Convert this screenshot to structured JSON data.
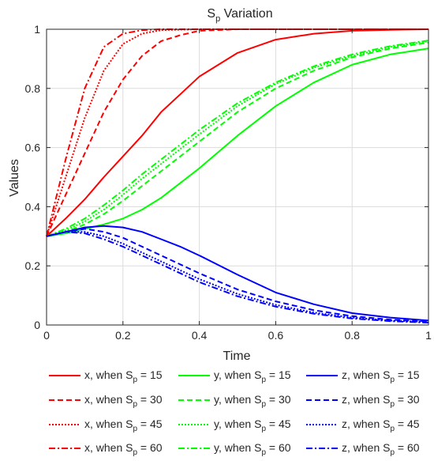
{
  "chart_data": {
    "type": "line",
    "title_main": "S",
    "title_sub": "p",
    "title_rest": " Variation",
    "xlabel": "Time",
    "ylabel": "Values",
    "xlim": [
      0,
      1
    ],
    "ylim": [
      0,
      1
    ],
    "xticks": [
      0,
      0.2,
      0.4,
      0.6,
      0.8,
      1
    ],
    "xtick_labels": [
      "0",
      "0.2",
      "0.4",
      "0.6",
      "0.8",
      "1"
    ],
    "yticks": [
      0,
      0.2,
      0.4,
      0.6,
      0.8,
      1
    ],
    "ytick_labels": [
      "0",
      "0.2",
      "0.4",
      "0.6",
      "0.8",
      "1"
    ],
    "grid": true,
    "legend_placement": "below plot, 3 columns",
    "colors": {
      "x": "#ff0000",
      "y": "#00ff00",
      "z": "#0000ff"
    },
    "series": [
      {
        "name": "x, when S_p = 15",
        "variable": "x",
        "sp": "15",
        "style": "solid",
        "color": "#ff0000",
        "points": [
          [
            0,
            0.3
          ],
          [
            0.05,
            0.36
          ],
          [
            0.1,
            0.425
          ],
          [
            0.15,
            0.5
          ],
          [
            0.2,
            0.57
          ],
          [
            0.25,
            0.64
          ],
          [
            0.3,
            0.72
          ],
          [
            0.35,
            0.78
          ],
          [
            0.4,
            0.84
          ],
          [
            0.5,
            0.92
          ],
          [
            0.6,
            0.965
          ],
          [
            0.7,
            0.985
          ],
          [
            0.8,
            0.995
          ],
          [
            0.9,
            0.998
          ],
          [
            1,
            1
          ]
        ]
      },
      {
        "name": "x, when S_p = 30",
        "variable": "x",
        "sp": "30",
        "style": "dashed",
        "color": "#ff0000",
        "points": [
          [
            0,
            0.3
          ],
          [
            0.05,
            0.44
          ],
          [
            0.1,
            0.58
          ],
          [
            0.15,
            0.72
          ],
          [
            0.2,
            0.83
          ],
          [
            0.25,
            0.91
          ],
          [
            0.3,
            0.96
          ],
          [
            0.35,
            0.98
          ],
          [
            0.4,
            0.995
          ],
          [
            0.5,
            1
          ],
          [
            0.6,
            1
          ],
          [
            0.8,
            1
          ],
          [
            1,
            1
          ]
        ]
      },
      {
        "name": "x, when S_p = 45",
        "variable": "x",
        "sp": "45",
        "style": "dotted",
        "color": "#ff0000",
        "points": [
          [
            0,
            0.3
          ],
          [
            0.05,
            0.5
          ],
          [
            0.1,
            0.7
          ],
          [
            0.15,
            0.86
          ],
          [
            0.2,
            0.95
          ],
          [
            0.25,
            0.985
          ],
          [
            0.3,
            0.997
          ],
          [
            0.4,
            1
          ],
          [
            0.6,
            1
          ],
          [
            0.8,
            1
          ],
          [
            1,
            1
          ]
        ]
      },
      {
        "name": "x, when S_p = 60",
        "variable": "x",
        "sp": "60",
        "style": "dashdot",
        "color": "#ff0000",
        "points": [
          [
            0,
            0.3
          ],
          [
            0.05,
            0.56
          ],
          [
            0.1,
            0.8
          ],
          [
            0.15,
            0.94
          ],
          [
            0.2,
            0.985
          ],
          [
            0.25,
            0.997
          ],
          [
            0.3,
            1
          ],
          [
            0.5,
            1
          ],
          [
            0.7,
            1
          ],
          [
            1,
            1
          ]
        ]
      },
      {
        "name": "y, when S_p = 15",
        "variable": "y",
        "sp": "15",
        "style": "solid",
        "color": "#00ff00",
        "points": [
          [
            0,
            0.3
          ],
          [
            0.05,
            0.31
          ],
          [
            0.1,
            0.325
          ],
          [
            0.15,
            0.34
          ],
          [
            0.2,
            0.36
          ],
          [
            0.25,
            0.39
          ],
          [
            0.3,
            0.43
          ],
          [
            0.4,
            0.53
          ],
          [
            0.5,
            0.64
          ],
          [
            0.6,
            0.74
          ],
          [
            0.7,
            0.82
          ],
          [
            0.8,
            0.88
          ],
          [
            0.9,
            0.915
          ],
          [
            1,
            0.935
          ]
        ]
      },
      {
        "name": "y, when S_p = 30",
        "variable": "y",
        "sp": "30",
        "style": "dashed",
        "color": "#00ff00",
        "points": [
          [
            0,
            0.3
          ],
          [
            0.05,
            0.315
          ],
          [
            0.1,
            0.34
          ],
          [
            0.15,
            0.375
          ],
          [
            0.2,
            0.42
          ],
          [
            0.25,
            0.47
          ],
          [
            0.3,
            0.52
          ],
          [
            0.4,
            0.62
          ],
          [
            0.5,
            0.72
          ],
          [
            0.6,
            0.8
          ],
          [
            0.7,
            0.86
          ],
          [
            0.8,
            0.905
          ],
          [
            0.9,
            0.935
          ],
          [
            1,
            0.955
          ]
        ]
      },
      {
        "name": "y, when S_p = 45",
        "variable": "y",
        "sp": "45",
        "style": "dotted",
        "color": "#00ff00",
        "points": [
          [
            0,
            0.3
          ],
          [
            0.05,
            0.32
          ],
          [
            0.1,
            0.35
          ],
          [
            0.15,
            0.39
          ],
          [
            0.2,
            0.44
          ],
          [
            0.25,
            0.495
          ],
          [
            0.3,
            0.545
          ],
          [
            0.4,
            0.645
          ],
          [
            0.5,
            0.74
          ],
          [
            0.6,
            0.815
          ],
          [
            0.7,
            0.87
          ],
          [
            0.8,
            0.91
          ],
          [
            0.9,
            0.94
          ],
          [
            1,
            0.96
          ]
        ]
      },
      {
        "name": "y, when S_p = 60",
        "variable": "y",
        "sp": "60",
        "style": "dashdot",
        "color": "#00ff00",
        "points": [
          [
            0,
            0.3
          ],
          [
            0.05,
            0.325
          ],
          [
            0.1,
            0.36
          ],
          [
            0.15,
            0.405
          ],
          [
            0.2,
            0.455
          ],
          [
            0.25,
            0.51
          ],
          [
            0.3,
            0.56
          ],
          [
            0.4,
            0.66
          ],
          [
            0.5,
            0.75
          ],
          [
            0.6,
            0.82
          ],
          [
            0.7,
            0.875
          ],
          [
            0.8,
            0.915
          ],
          [
            0.9,
            0.943
          ],
          [
            1,
            0.962
          ]
        ]
      },
      {
        "name": "z, when S_p = 15",
        "variable": "z",
        "sp": "15",
        "style": "solid",
        "color": "#0000ff",
        "points": [
          [
            0,
            0.3
          ],
          [
            0.05,
            0.315
          ],
          [
            0.1,
            0.33
          ],
          [
            0.15,
            0.335
          ],
          [
            0.2,
            0.33
          ],
          [
            0.25,
            0.315
          ],
          [
            0.3,
            0.29
          ],
          [
            0.35,
            0.265
          ],
          [
            0.4,
            0.235
          ],
          [
            0.5,
            0.17
          ],
          [
            0.6,
            0.11
          ],
          [
            0.7,
            0.07
          ],
          [
            0.8,
            0.04
          ],
          [
            0.9,
            0.025
          ],
          [
            1,
            0.015
          ]
        ]
      },
      {
        "name": "z, when S_p = 30",
        "variable": "z",
        "sp": "30",
        "style": "dashed",
        "color": "#0000ff",
        "points": [
          [
            0,
            0.3
          ],
          [
            0.05,
            0.315
          ],
          [
            0.1,
            0.325
          ],
          [
            0.15,
            0.315
          ],
          [
            0.2,
            0.295
          ],
          [
            0.25,
            0.265
          ],
          [
            0.3,
            0.235
          ],
          [
            0.4,
            0.175
          ],
          [
            0.5,
            0.12
          ],
          [
            0.6,
            0.08
          ],
          [
            0.7,
            0.05
          ],
          [
            0.8,
            0.03
          ],
          [
            0.9,
            0.018
          ],
          [
            1,
            0.012
          ]
        ]
      },
      {
        "name": "z, when S_p = 45",
        "variable": "z",
        "sp": "45",
        "style": "dotted",
        "color": "#0000ff",
        "points": [
          [
            0,
            0.3
          ],
          [
            0.05,
            0.315
          ],
          [
            0.1,
            0.315
          ],
          [
            0.15,
            0.3
          ],
          [
            0.2,
            0.275
          ],
          [
            0.25,
            0.245
          ],
          [
            0.3,
            0.215
          ],
          [
            0.4,
            0.155
          ],
          [
            0.5,
            0.105
          ],
          [
            0.6,
            0.068
          ],
          [
            0.7,
            0.042
          ],
          [
            0.8,
            0.025
          ],
          [
            0.9,
            0.015
          ],
          [
            1,
            0.01
          ]
        ]
      },
      {
        "name": "z, when S_p = 60",
        "variable": "z",
        "sp": "60",
        "style": "dashdot",
        "color": "#0000ff",
        "points": [
          [
            0,
            0.3
          ],
          [
            0.05,
            0.315
          ],
          [
            0.1,
            0.31
          ],
          [
            0.15,
            0.29
          ],
          [
            0.2,
            0.265
          ],
          [
            0.25,
            0.235
          ],
          [
            0.3,
            0.205
          ],
          [
            0.4,
            0.145
          ],
          [
            0.5,
            0.097
          ],
          [
            0.6,
            0.062
          ],
          [
            0.7,
            0.038
          ],
          [
            0.8,
            0.022
          ],
          [
            0.9,
            0.013
          ],
          [
            1,
            0.008
          ]
        ]
      }
    ],
    "legend": {
      "rows": [
        [
          {
            "prefix": "x, when S",
            "sub": "p",
            "suffix": " = 15",
            "series": 0
          },
          {
            "prefix": "y, when S",
            "sub": "p",
            "suffix": " = 15",
            "series": 4
          },
          {
            "prefix": "z, when S",
            "sub": "p",
            "suffix": " = 15",
            "series": 8
          }
        ],
        [
          {
            "prefix": "x, when S",
            "sub": "p",
            "suffix": " = 30",
            "series": 1
          },
          {
            "prefix": "y, when S",
            "sub": "p",
            "suffix": " = 30",
            "series": 5
          },
          {
            "prefix": "z, when S",
            "sub": "p",
            "suffix": " = 30",
            "series": 9
          }
        ],
        [
          {
            "prefix": "x, when S",
            "sub": "p",
            "suffix": " = 45",
            "series": 2
          },
          {
            "prefix": "y, when S",
            "sub": "p",
            "suffix": " = 45",
            "series": 6
          },
          {
            "prefix": "z, when S",
            "sub": "p",
            "suffix": " = 45",
            "series": 10
          }
        ],
        [
          {
            "prefix": "x, when S",
            "sub": "p",
            "suffix": " = 60",
            "series": 3
          },
          {
            "prefix": "y, when S",
            "sub": "p",
            "suffix": " = 60",
            "series": 7
          },
          {
            "prefix": "z, when S",
            "sub": "p",
            "suffix": " = 60",
            "series": 11
          }
        ]
      ]
    }
  }
}
